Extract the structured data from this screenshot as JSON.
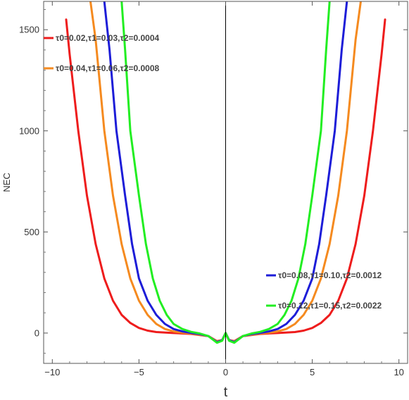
{
  "chart_data": {
    "type": "line",
    "title": "",
    "xlabel": "t",
    "ylabel": "NEC",
    "xlim": [
      -10.5,
      10.5
    ],
    "ylim": [
      -150,
      1640
    ],
    "x_ticks": [
      -10,
      -5,
      0,
      5,
      10
    ],
    "y_ticks": [
      0,
      500,
      1000,
      1500
    ],
    "grid": false,
    "series": [
      {
        "name": "τ0=0.02,τ1=0.03,τ2=0.0004",
        "color": "#ee1c1c",
        "legend_position": "top-left",
        "points": [
          [
            -9.2,
            1550
          ],
          [
            -9.0,
            1380
          ],
          [
            -8.5,
            1000
          ],
          [
            -8.0,
            680
          ],
          [
            -7.5,
            440
          ],
          [
            -7.0,
            270
          ],
          [
            -6.5,
            160
          ],
          [
            -6.0,
            90
          ],
          [
            -5.5,
            50
          ],
          [
            -5.0,
            25
          ],
          [
            -4.5,
            12
          ],
          [
            -4.0,
            5
          ],
          [
            -3.0,
            0
          ],
          [
            -2.0,
            -4
          ],
          [
            -1.0,
            -15
          ],
          [
            -0.5,
            -40
          ],
          [
            -0.2,
            -35
          ],
          [
            0.0,
            0
          ],
          [
            0.2,
            -35
          ],
          [
            0.5,
            -40
          ],
          [
            1.0,
            -15
          ],
          [
            2.0,
            -4
          ],
          [
            3.0,
            0
          ],
          [
            4.0,
            5
          ],
          [
            4.5,
            12
          ],
          [
            5.0,
            25
          ],
          [
            5.5,
            50
          ],
          [
            6.0,
            90
          ],
          [
            6.5,
            160
          ],
          [
            7.0,
            270
          ],
          [
            7.5,
            440
          ],
          [
            8.0,
            680
          ],
          [
            8.5,
            1000
          ],
          [
            9.0,
            1380
          ],
          [
            9.2,
            1550
          ]
        ]
      },
      {
        "name": "τ0=0.04,τ1=0.06,τ2=0.0008",
        "color": "#f58a1f",
        "legend_position": "top-left",
        "points": [
          [
            -7.8,
            1640
          ],
          [
            -7.5,
            1450
          ],
          [
            -7.0,
            1000
          ],
          [
            -6.5,
            680
          ],
          [
            -6.0,
            440
          ],
          [
            -5.5,
            270
          ],
          [
            -5.0,
            160
          ],
          [
            -4.5,
            90
          ],
          [
            -4.0,
            45
          ],
          [
            -3.5,
            20
          ],
          [
            -3.0,
            8
          ],
          [
            -2.5,
            2
          ],
          [
            -2.0,
            -2
          ],
          [
            -1.0,
            -15
          ],
          [
            -0.5,
            -42
          ],
          [
            -0.2,
            -35
          ],
          [
            0.0,
            0
          ],
          [
            0.2,
            -35
          ],
          [
            0.5,
            -42
          ],
          [
            1.0,
            -15
          ],
          [
            2.0,
            -2
          ],
          [
            2.5,
            2
          ],
          [
            3.0,
            8
          ],
          [
            3.5,
            20
          ],
          [
            4.0,
            45
          ],
          [
            4.5,
            90
          ],
          [
            5.0,
            160
          ],
          [
            5.5,
            270
          ],
          [
            6.0,
            440
          ],
          [
            6.5,
            680
          ],
          [
            7.0,
            1000
          ],
          [
            7.5,
            1450
          ],
          [
            7.8,
            1640
          ]
        ]
      },
      {
        "name": "τ0=0.08,τ1=0.10,τ2=0.0012",
        "color": "#1d1dd8",
        "legend_position": "bottom-right",
        "points": [
          [
            -7.0,
            1640
          ],
          [
            -6.7,
            1400
          ],
          [
            -6.3,
            1000
          ],
          [
            -5.8,
            680
          ],
          [
            -5.4,
            440
          ],
          [
            -5.0,
            270
          ],
          [
            -4.5,
            160
          ],
          [
            -4.0,
            90
          ],
          [
            -3.5,
            45
          ],
          [
            -3.0,
            20
          ],
          [
            -2.5,
            8
          ],
          [
            -2.0,
            1
          ],
          [
            -1.5,
            -5
          ],
          [
            -1.0,
            -15
          ],
          [
            -0.5,
            -45
          ],
          [
            -0.2,
            -35
          ],
          [
            0.0,
            0
          ],
          [
            0.2,
            -35
          ],
          [
            0.5,
            -45
          ],
          [
            1.0,
            -15
          ],
          [
            1.5,
            -5
          ],
          [
            2.0,
            1
          ],
          [
            2.5,
            8
          ],
          [
            3.0,
            20
          ],
          [
            3.5,
            45
          ],
          [
            4.0,
            90
          ],
          [
            4.5,
            160
          ],
          [
            5.0,
            270
          ],
          [
            5.4,
            440
          ],
          [
            5.8,
            680
          ],
          [
            6.3,
            1000
          ],
          [
            6.7,
            1400
          ],
          [
            7.0,
            1640
          ]
        ]
      },
      {
        "name": "τ0=0.12,τ1=0.15,τ2=0.0022",
        "color": "#22ee22",
        "legend_position": "bottom-right",
        "points": [
          [
            -6.0,
            1640
          ],
          [
            -5.8,
            1400
          ],
          [
            -5.5,
            1000
          ],
          [
            -5.0,
            680
          ],
          [
            -4.6,
            440
          ],
          [
            -4.2,
            270
          ],
          [
            -3.8,
            160
          ],
          [
            -3.4,
            90
          ],
          [
            -3.0,
            45
          ],
          [
            -2.5,
            20
          ],
          [
            -2.0,
            6
          ],
          [
            -1.5,
            -2
          ],
          [
            -1.0,
            -15
          ],
          [
            -0.5,
            -48
          ],
          [
            -0.2,
            -38
          ],
          [
            0.0,
            0
          ],
          [
            0.2,
            -38
          ],
          [
            0.5,
            -48
          ],
          [
            1.0,
            -15
          ],
          [
            1.5,
            -2
          ],
          [
            2.0,
            6
          ],
          [
            2.5,
            20
          ],
          [
            3.0,
            45
          ],
          [
            3.4,
            90
          ],
          [
            3.8,
            160
          ],
          [
            4.2,
            270
          ],
          [
            4.6,
            440
          ],
          [
            5.0,
            680
          ],
          [
            5.5,
            1000
          ],
          [
            5.8,
            1400
          ],
          [
            6.0,
            1640
          ]
        ]
      }
    ]
  }
}
